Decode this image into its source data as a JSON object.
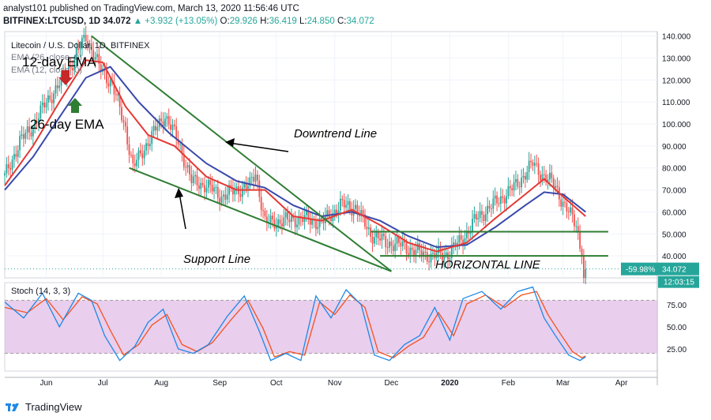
{
  "header": {
    "published": "analyst101 published on TradingView.com, March 13, 2020 11:56:46 UTC",
    "symbol": "BITFINEX:LTCUSD, 1D",
    "last": "34.072",
    "change": "▲ +3.932 (+13.05%)",
    "o_label": "O:",
    "o": "29.926",
    "h_label": "H:",
    "h": "36.419",
    "l_label": "L:",
    "l": "24.850",
    "c_label": "C:",
    "c": "34.072"
  },
  "footer": {
    "brand": "TradingView"
  },
  "colors": {
    "up": "#26a69a",
    "down": "#ef5350",
    "ema12": "#e53935",
    "ema26": "#3949ab",
    "trend": "#2e7d32",
    "stoch_k": "#1e88e5",
    "stoch_d": "#f4511e",
    "stoch_band": "#e1bee7"
  },
  "chart_data": [
    {
      "type": "candlestick",
      "title": "Litecoin / U.S. Dollar, 1D, BITFINEX",
      "indicator_labels": [
        "EMA (26, close, 0)",
        "EMA (12, close, 0)"
      ],
      "x_ticks": [
        "Jun",
        "Jul",
        "Aug",
        "Sep",
        "Oct",
        "Nov",
        "Dec",
        "2020",
        "Feb",
        "Mar",
        "Apr"
      ],
      "y_ticks": [
        "40.000",
        "50.000",
        "60.000",
        "70.000",
        "80.000",
        "90.000",
        "100.000",
        "110.000",
        "120.000",
        "130.000",
        "140.000"
      ],
      "ylim": [
        30,
        142
      ],
      "x_start": "2019-05-10",
      "x_end": "2020-04-20",
      "series": [
        {
          "name": "price",
          "points": [
            [
              "2019-05-10",
              76
            ],
            [
              "2019-05-18",
              92
            ],
            [
              "2019-05-25",
              99
            ],
            [
              "2019-06-01",
              110
            ],
            [
              "2019-06-08",
              118
            ],
            [
              "2019-06-15",
              128
            ],
            [
              "2019-06-22",
              140
            ],
            [
              "2019-06-29",
              126
            ],
            [
              "2019-07-06",
              118
            ],
            [
              "2019-07-13",
              98
            ],
            [
              "2019-07-17",
              80
            ],
            [
              "2019-07-25",
              92
            ],
            [
              "2019-08-03",
              104
            ],
            [
              "2019-08-10",
              92
            ],
            [
              "2019-08-17",
              74
            ],
            [
              "2019-08-25",
              72
            ],
            [
              "2019-09-02",
              67
            ],
            [
              "2019-09-10",
              70
            ],
            [
              "2019-09-17",
              72
            ],
            [
              "2019-09-20",
              78
            ],
            [
              "2019-09-25",
              55
            ],
            [
              "2019-10-05",
              56
            ],
            [
              "2019-10-15",
              57
            ],
            [
              "2019-10-25",
              55
            ],
            [
              "2019-11-04",
              63
            ],
            [
              "2019-11-12",
              62
            ],
            [
              "2019-11-20",
              50
            ],
            [
              "2019-11-28",
              46
            ],
            [
              "2019-12-06",
              45
            ],
            [
              "2019-12-14",
              42
            ],
            [
              "2019-12-22",
              40
            ],
            [
              "2019-12-31",
              41
            ],
            [
              "2020-01-08",
              48
            ],
            [
              "2020-01-15",
              57
            ],
            [
              "2020-01-25",
              64
            ],
            [
              "2020-02-05",
              72
            ],
            [
              "2020-02-14",
              82
            ],
            [
              "2020-02-20",
              76
            ],
            [
              "2020-02-26",
              72
            ],
            [
              "2020-03-02",
              62
            ],
            [
              "2020-03-08",
              55
            ],
            [
              "2020-03-11",
              40
            ],
            [
              "2020-03-12",
              30
            ],
            [
              "2020-03-13",
              34
            ]
          ]
        },
        {
          "name": "EMA 12",
          "points": [
            [
              "2019-05-10",
              72
            ],
            [
              "2019-05-25",
              90
            ],
            [
              "2019-06-08",
              110
            ],
            [
              "2019-06-22",
              129
            ],
            [
              "2019-07-01",
              128
            ],
            [
              "2019-07-13",
              108
            ],
            [
              "2019-07-25",
              95
            ],
            [
              "2019-08-08",
              90
            ],
            [
              "2019-08-25",
              76
            ],
            [
              "2019-09-10",
              70
            ],
            [
              "2019-09-25",
              70
            ],
            [
              "2019-10-10",
              58
            ],
            [
              "2019-10-25",
              56
            ],
            [
              "2019-11-10",
              61
            ],
            [
              "2019-11-25",
              54
            ],
            [
              "2019-12-10",
              46
            ],
            [
              "2019-12-25",
              42
            ],
            [
              "2020-01-10",
              46
            ],
            [
              "2020-01-25",
              57
            ],
            [
              "2020-02-10",
              68
            ],
            [
              "2020-02-20",
              75
            ],
            [
              "2020-03-01",
              67
            ],
            [
              "2020-03-13",
              58
            ]
          ]
        },
        {
          "name": "EMA 26",
          "points": [
            [
              "2019-05-10",
              70
            ],
            [
              "2019-05-25",
              85
            ],
            [
              "2019-06-08",
              103
            ],
            [
              "2019-06-22",
              121
            ],
            [
              "2019-07-05",
              126
            ],
            [
              "2019-07-20",
              110
            ],
            [
              "2019-08-05",
              96
            ],
            [
              "2019-08-25",
              82
            ],
            [
              "2019-09-10",
              74
            ],
            [
              "2019-09-25",
              71
            ],
            [
              "2019-10-10",
              63
            ],
            [
              "2019-10-25",
              58
            ],
            [
              "2019-11-10",
              60
            ],
            [
              "2019-11-25",
              56
            ],
            [
              "2019-12-10",
              49
            ],
            [
              "2019-12-25",
              44
            ],
            [
              "2020-01-10",
              45
            ],
            [
              "2020-01-25",
              53
            ],
            [
              "2020-02-10",
              63
            ],
            [
              "2020-02-20",
              69
            ],
            [
              "2020-03-01",
              68
            ],
            [
              "2020-03-13",
              60
            ]
          ]
        }
      ],
      "annotations": [
        {
          "text": "12-day EMA"
        },
        {
          "text": "26-day EMA"
        },
        {
          "text": "Downtrend Line"
        },
        {
          "text": "Support Line"
        },
        {
          "text": "HORIZONTAL LINE"
        }
      ],
      "trend_lines": [
        {
          "name": "Downtrend Line",
          "from": [
            "2019-06-25",
            140
          ],
          "to": [
            "2019-12-01",
            33
          ]
        },
        {
          "name": "Support Line",
          "from": [
            "2019-07-15",
            80
          ],
          "to": [
            "2019-12-01",
            33
          ]
        },
        {
          "name": "HORIZONTAL LINE upper",
          "from": [
            "2019-11-20",
            51
          ],
          "to": [
            "2020-03-25",
            51
          ]
        },
        {
          "name": "HORIZONTAL LINE lower",
          "from": [
            "2019-11-25",
            40
          ],
          "to": [
            "2020-03-25",
            40
          ]
        }
      ],
      "price_badges": {
        "change": "-59.98%",
        "price": "34.072",
        "countdown": "12:03:15"
      }
    },
    {
      "type": "line",
      "title": "Stoch (14, 3, 3)",
      "y_ticks": [
        "25.00",
        "50.00",
        "75.00"
      ],
      "ylim": [
        0,
        100
      ],
      "band": [
        20,
        80
      ],
      "series": [
        {
          "name": "%K",
          "points": [
            [
              "2019-05-10",
              78
            ],
            [
              "2019-05-20",
              60
            ],
            [
              "2019-05-30",
              88
            ],
            [
              "2019-06-08",
              50
            ],
            [
              "2019-06-18",
              88
            ],
            [
              "2019-06-25",
              80
            ],
            [
              "2019-07-02",
              40
            ],
            [
              "2019-07-10",
              12
            ],
            [
              "2019-07-18",
              28
            ],
            [
              "2019-07-25",
              55
            ],
            [
              "2019-08-02",
              70
            ],
            [
              "2019-08-10",
              25
            ],
            [
              "2019-08-18",
              20
            ],
            [
              "2019-08-26",
              30
            ],
            [
              "2019-09-05",
              62
            ],
            [
              "2019-09-14",
              85
            ],
            [
              "2019-09-22",
              45
            ],
            [
              "2019-09-28",
              12
            ],
            [
              "2019-10-06",
              20
            ],
            [
              "2019-10-14",
              12
            ],
            [
              "2019-10-22",
              85
            ],
            [
              "2019-10-30",
              60
            ],
            [
              "2019-11-07",
              92
            ],
            [
              "2019-11-15",
              75
            ],
            [
              "2019-11-22",
              18
            ],
            [
              "2019-11-30",
              12
            ],
            [
              "2019-12-08",
              30
            ],
            [
              "2019-12-16",
              40
            ],
            [
              "2019-12-24",
              72
            ],
            [
              "2020-01-01",
              35
            ],
            [
              "2020-01-08",
              82
            ],
            [
              "2020-01-18",
              90
            ],
            [
              "2020-01-28",
              70
            ],
            [
              "2020-02-06",
              90
            ],
            [
              "2020-02-14",
              95
            ],
            [
              "2020-02-20",
              60
            ],
            [
              "2020-02-26",
              40
            ],
            [
              "2020-03-04",
              18
            ],
            [
              "2020-03-10",
              12
            ],
            [
              "2020-03-13",
              16
            ]
          ]
        },
        {
          "name": "%D",
          "points": [
            [
              "2019-05-10",
              72
            ],
            [
              "2019-05-22",
              66
            ],
            [
              "2019-06-01",
              82
            ],
            [
              "2019-06-10",
              58
            ],
            [
              "2019-06-20",
              84
            ],
            [
              "2019-06-28",
              76
            ],
            [
              "2019-07-05",
              46
            ],
            [
              "2019-07-12",
              18
            ],
            [
              "2019-07-20",
              30
            ],
            [
              "2019-07-27",
              52
            ],
            [
              "2019-08-04",
              64
            ],
            [
              "2019-08-12",
              30
            ],
            [
              "2019-08-20",
              22
            ],
            [
              "2019-08-28",
              32
            ],
            [
              "2019-09-07",
              58
            ],
            [
              "2019-09-16",
              80
            ],
            [
              "2019-09-24",
              48
            ],
            [
              "2019-09-30",
              16
            ],
            [
              "2019-10-08",
              22
            ],
            [
              "2019-10-16",
              18
            ],
            [
              "2019-10-24",
              78
            ],
            [
              "2019-11-01",
              64
            ],
            [
              "2019-11-09",
              86
            ],
            [
              "2019-11-17",
              72
            ],
            [
              "2019-11-24",
              22
            ],
            [
              "2019-12-02",
              15
            ],
            [
              "2019-12-10",
              28
            ],
            [
              "2019-12-18",
              38
            ],
            [
              "2019-12-26",
              66
            ],
            [
              "2020-01-03",
              40
            ],
            [
              "2020-01-10",
              76
            ],
            [
              "2020-01-20",
              86
            ],
            [
              "2020-01-30",
              72
            ],
            [
              "2020-02-08",
              86
            ],
            [
              "2020-02-16",
              90
            ],
            [
              "2020-02-22",
              64
            ],
            [
              "2020-02-28",
              44
            ],
            [
              "2020-03-06",
              22
            ],
            [
              "2020-03-11",
              15
            ],
            [
              "2020-03-13",
              17
            ]
          ]
        }
      ]
    }
  ]
}
